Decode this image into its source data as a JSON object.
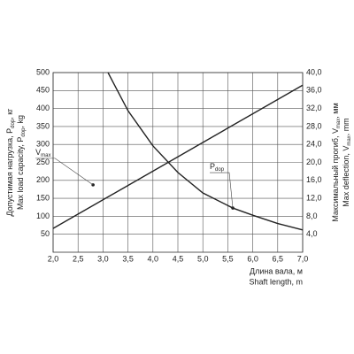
{
  "chart_data": {
    "type": "line",
    "xlim": [
      2.0,
      7.0
    ],
    "xticks": [
      {
        "value": 2.0,
        "label": "2,0"
      },
      {
        "value": 2.5,
        "label": "2,5"
      },
      {
        "value": 3.0,
        "label": "3,0"
      },
      {
        "value": 3.5,
        "label": "3,5"
      },
      {
        "value": 4.0,
        "label": "4,0"
      },
      {
        "value": 4.5,
        "label": "4,5"
      },
      {
        "value": 5.0,
        "label": "5,0"
      },
      {
        "value": 5.5,
        "label": "5,5"
      },
      {
        "value": 6.0,
        "label": "6,0"
      },
      {
        "value": 6.5,
        "label": "6,5"
      },
      {
        "value": 7.0,
        "label": "7,0"
      }
    ],
    "ylim": [
      0,
      500
    ],
    "yticks": [
      50,
      100,
      150,
      200,
      250,
      300,
      350,
      400,
      450,
      500
    ],
    "y2lim": [
      0,
      40
    ],
    "y2ticks": [
      {
        "value": 4,
        "label": "4,0"
      },
      {
        "value": 8,
        "label": "8,0"
      },
      {
        "value": 12,
        "label": "12,0"
      },
      {
        "value": 16,
        "label": "16,0"
      },
      {
        "value": 20,
        "label": "20,0"
      },
      {
        "value": 24,
        "label": "24,0"
      },
      {
        "value": 28,
        "label": "28,0"
      },
      {
        "value": 32,
        "label": "32,0"
      },
      {
        "value": 36,
        "label": "36,0"
      },
      {
        "value": 40,
        "label": "40,0"
      }
    ],
    "grid": true,
    "x_label": [
      "Длина вала, м",
      "Shaft length, m"
    ],
    "y_label": [
      [
        "Допустимая нагрузка, P",
        "dop",
        ", кг"
      ],
      [
        "Max load capacity, P",
        "dop",
        ", kg"
      ]
    ],
    "y2_label": [
      [
        "Максимальный прогиб, V",
        "max",
        ", мм"
      ],
      [
        "Max deflection, V",
        "max",
        ", mm"
      ]
    ],
    "series": [
      {
        "name": [
          "P",
          "dop"
        ],
        "color": "#222222",
        "axis": "y",
        "x": [
          3.1,
          3.5,
          4.0,
          4.5,
          5.0,
          5.6,
          6.0,
          6.5,
          7.0
        ],
        "values": [
          500,
          394,
          296,
          222,
          165,
          123,
          103,
          80,
          62
        ],
        "annotation_point": 5
      },
      {
        "name": [
          "V",
          "max"
        ],
        "color": "#222222",
        "axis": "y2",
        "x": [
          2.0,
          7.0
        ],
        "values": [
          5.3,
          37.2
        ],
        "annotation_point": {
          "x": 2.8,
          "y": 15.0
        }
      }
    ]
  }
}
